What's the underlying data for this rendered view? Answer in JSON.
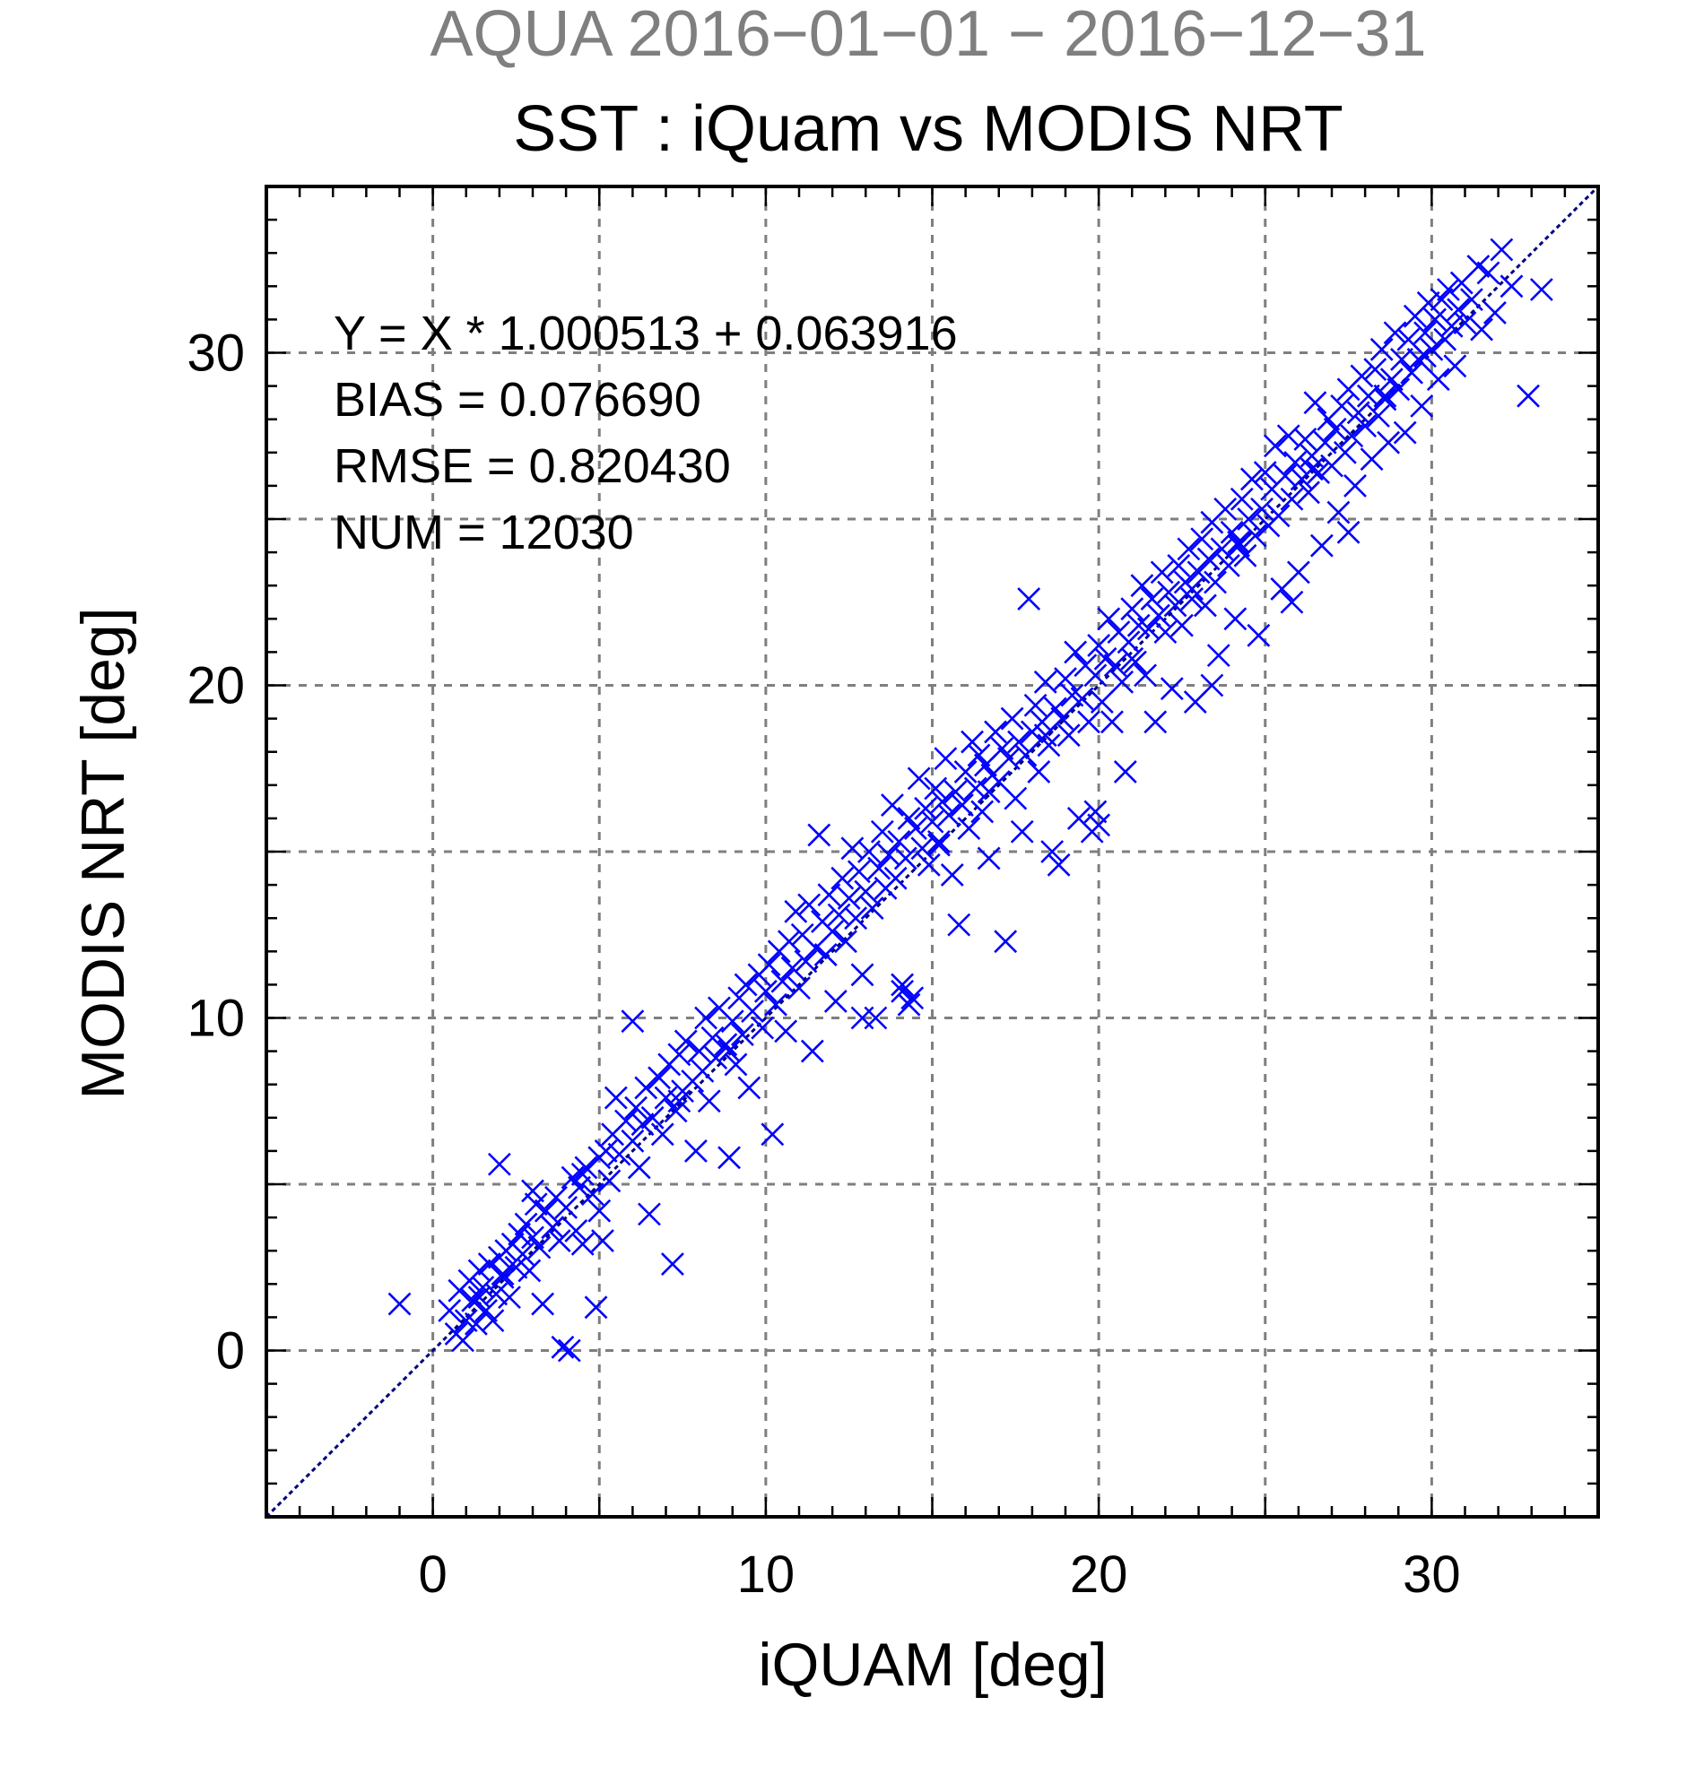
{
  "chart_data": {
    "type": "scatter",
    "suptitle": "AQUA  2016−01−01 − 2016−12−31",
    "title": "SST : iQuam vs MODIS NRT",
    "xlabel": "iQUAM [deg]",
    "ylabel": "MODIS NRT [deg]",
    "xlim": [
      -5,
      35
    ],
    "ylim": [
      -5,
      35
    ],
    "xticks": [
      0,
      10,
      20,
      30
    ],
    "yticks": [
      0,
      10,
      20,
      30
    ],
    "xtick_labels": [
      "0",
      "10",
      "20",
      "30"
    ],
    "ytick_labels": [
      "0",
      "10",
      "20",
      "30"
    ],
    "grid": true,
    "marker": "x",
    "marker_color": "#0000ff",
    "reference_line": {
      "slope": 1,
      "intercept": 0,
      "color": "#000080",
      "style": "dashed"
    },
    "stats": [
      "Y = X * 1.000513 + 0.063916",
      "BIAS = 0.076690",
      "RMSE = 0.820430",
      "NUM = 12030"
    ],
    "points": [
      [
        -1.0,
        1.4
      ],
      [
        0.5,
        1.2
      ],
      [
        0.7,
        0.5
      ],
      [
        0.8,
        1.8
      ],
      [
        0.9,
        0.3
      ],
      [
        1.0,
        0.9
      ],
      [
        1.1,
        2.1
      ],
      [
        1.2,
        1.5
      ],
      [
        1.3,
        0.8
      ],
      [
        1.4,
        2.4
      ],
      [
        1.5,
        1.9
      ],
      [
        1.6,
        1.2
      ],
      [
        1.7,
        2.6
      ],
      [
        1.8,
        0.9
      ],
      [
        1.9,
        1.7
      ],
      [
        2.0,
        2.8
      ],
      [
        2.0,
        5.6
      ],
      [
        2.1,
        2.2
      ],
      [
        2.2,
        3.0
      ],
      [
        2.3,
        1.6
      ],
      [
        2.4,
        3.2
      ],
      [
        2.5,
        2.5
      ],
      [
        2.6,
        3.5
      ],
      [
        2.7,
        2.9
      ],
      [
        2.8,
        3.8
      ],
      [
        2.9,
        2.4
      ],
      [
        3.0,
        3.4
      ],
      [
        3.0,
        4.8
      ],
      [
        3.1,
        4.4
      ],
      [
        3.2,
        3.1
      ],
      [
        3.3,
        1.4
      ],
      [
        3.4,
        4.2
      ],
      [
        3.6,
        3.7
      ],
      [
        3.7,
        4.6
      ],
      [
        3.8,
        3.3
      ],
      [
        3.9,
        0.1
      ],
      [
        4.0,
        4.3
      ],
      [
        4.1,
        0.0
      ],
      [
        4.2,
        5.2
      ],
      [
        4.3,
        3.6
      ],
      [
        4.4,
        4.9
      ],
      [
        4.5,
        3.2
      ],
      [
        4.6,
        5.5
      ],
      [
        4.8,
        4.7
      ],
      [
        4.9,
        1.3
      ],
      [
        5.0,
        5.8
      ],
      [
        5.0,
        4.2
      ],
      [
        5.2,
        6.0
      ],
      [
        5.3,
        5.1
      ],
      [
        5.4,
        6.5
      ],
      [
        5.5,
        7.6
      ],
      [
        5.6,
        5.9
      ],
      [
        5.8,
        6.9
      ],
      [
        6.0,
        6.3
      ],
      [
        6.0,
        9.9
      ],
      [
        6.1,
        7.3
      ],
      [
        6.2,
        5.5
      ],
      [
        6.3,
        6.8
      ],
      [
        6.4,
        7.9
      ],
      [
        6.5,
        4.1
      ],
      [
        6.6,
        7.0
      ],
      [
        6.8,
        8.2
      ],
      [
        6.9,
        6.5
      ],
      [
        7.0,
        7.6
      ],
      [
        7.1,
        8.6
      ],
      [
        7.2,
        2.6
      ],
      [
        7.3,
        7.2
      ],
      [
        7.4,
        8.9
      ],
      [
        7.5,
        7.8
      ],
      [
        7.6,
        9.3
      ],
      [
        7.8,
        8.1
      ],
      [
        7.9,
        6.0
      ],
      [
        8.0,
        9.0
      ],
      [
        8.1,
        8.4
      ],
      [
        8.2,
        10.0
      ],
      [
        8.3,
        7.5
      ],
      [
        8.4,
        9.4
      ],
      [
        8.5,
        8.8
      ],
      [
        8.6,
        10.3
      ],
      [
        8.8,
        9.2
      ],
      [
        8.9,
        5.8
      ],
      [
        9.0,
        9.9
      ],
      [
        9.1,
        8.6
      ],
      [
        9.2,
        10.6
      ],
      [
        9.3,
        9.5
      ],
      [
        9.4,
        11.0
      ],
      [
        9.5,
        7.9
      ],
      [
        9.6,
        10.2
      ],
      [
        9.8,
        11.3
      ],
      [
        9.9,
        9.7
      ],
      [
        10.0,
        10.8
      ],
      [
        10.1,
        11.6
      ],
      [
        10.2,
        6.5
      ],
      [
        10.3,
        10.4
      ],
      [
        10.4,
        12.0
      ],
      [
        10.5,
        11.1
      ],
      [
        10.6,
        9.6
      ],
      [
        10.7,
        12.3
      ],
      [
        10.8,
        11.5
      ],
      [
        10.9,
        13.2
      ],
      [
        11.0,
        10.9
      ],
      [
        11.1,
        12.5
      ],
      [
        11.2,
        11.7
      ],
      [
        11.3,
        13.4
      ],
      [
        11.4,
        9.0
      ],
      [
        11.5,
        12.1
      ],
      [
        11.6,
        15.5
      ],
      [
        11.7,
        12.9
      ],
      [
        11.8,
        11.9
      ],
      [
        11.9,
        13.7
      ],
      [
        12.0,
        12.6
      ],
      [
        12.1,
        10.5
      ],
      [
        12.2,
        13.1
      ],
      [
        12.3,
        14.2
      ],
      [
        12.4,
        12.3
      ],
      [
        12.5,
        13.6
      ],
      [
        12.6,
        15.1
      ],
      [
        12.7,
        13.0
      ],
      [
        12.8,
        14.4
      ],
      [
        12.9,
        11.3
      ],
      [
        13.0,
        13.8
      ],
      [
        13.1,
        15.0
      ],
      [
        13.2,
        13.3
      ],
      [
        13.3,
        10.0
      ],
      [
        13.4,
        14.5
      ],
      [
        13.5,
        15.6
      ],
      [
        13.6,
        13.9
      ],
      [
        13.7,
        14.9
      ],
      [
        13.8,
        16.4
      ],
      [
        13.9,
        14.2
      ],
      [
        14.0,
        15.3
      ],
      [
        14.1,
        11.0
      ],
      [
        14.2,
        14.8
      ],
      [
        14.3,
        16.0
      ],
      [
        14.4,
        10.6
      ],
      [
        14.5,
        15.7
      ],
      [
        14.6,
        17.2
      ],
      [
        14.7,
        15.1
      ],
      [
        14.8,
        16.3
      ],
      [
        14.9,
        14.6
      ],
      [
        15.0,
        15.9
      ],
      [
        15.1,
        16.9
      ],
      [
        15.2,
        15.2
      ],
      [
        15.3,
        16.5
      ],
      [
        15.4,
        17.8
      ],
      [
        15.5,
        16.1
      ],
      [
        15.6,
        14.3
      ],
      [
        15.7,
        16.8
      ],
      [
        15.8,
        12.8
      ],
      [
        15.9,
        16.4
      ],
      [
        16.0,
        17.4
      ],
      [
        16.1,
        15.7
      ],
      [
        16.2,
        18.3
      ],
      [
        16.3,
        16.9
      ],
      [
        16.4,
        17.9
      ],
      [
        16.5,
        16.2
      ],
      [
        16.6,
        17.6
      ],
      [
        16.7,
        14.8
      ],
      [
        16.8,
        17.3
      ],
      [
        16.9,
        18.6
      ],
      [
        17.0,
        17.1
      ],
      [
        17.1,
        18.1
      ],
      [
        17.2,
        12.3
      ],
      [
        17.3,
        17.8
      ],
      [
        17.4,
        19.0
      ],
      [
        17.5,
        16.6
      ],
      [
        17.6,
        18.3
      ],
      [
        17.7,
        15.6
      ],
      [
        17.8,
        17.9
      ],
      [
        17.9,
        22.6
      ],
      [
        18.0,
        18.6
      ],
      [
        18.1,
        19.4
      ],
      [
        18.2,
        17.4
      ],
      [
        18.3,
        18.9
      ],
      [
        18.4,
        20.1
      ],
      [
        18.5,
        18.2
      ],
      [
        18.6,
        15.0
      ],
      [
        18.7,
        19.3
      ],
      [
        18.8,
        14.6
      ],
      [
        18.9,
        19.0
      ],
      [
        19.0,
        20.2
      ],
      [
        19.1,
        18.5
      ],
      [
        19.2,
        19.7
      ],
      [
        19.3,
        21.0
      ],
      [
        19.4,
        16.0
      ],
      [
        19.5,
        19.6
      ],
      [
        19.6,
        20.6
      ],
      [
        19.7,
        18.9
      ],
      [
        19.8,
        15.6
      ],
      [
        19.9,
        20.3
      ],
      [
        20.0,
        21.2
      ],
      [
        20.1,
        19.5
      ],
      [
        20.2,
        20.8
      ],
      [
        20.3,
        22.0
      ],
      [
        20.4,
        18.9
      ],
      [
        20.5,
        20.6
      ],
      [
        20.6,
        21.6
      ],
      [
        20.7,
        20.1
      ],
      [
        20.8,
        17.4
      ],
      [
        20.9,
        21.3
      ],
      [
        21.0,
        22.3
      ],
      [
        21.1,
        20.7
      ],
      [
        21.2,
        21.8
      ],
      [
        21.3,
        23.0
      ],
      [
        21.4,
        20.3
      ],
      [
        21.5,
        21.7
      ],
      [
        21.6,
        22.6
      ],
      [
        21.7,
        18.9
      ],
      [
        21.8,
        22.1
      ],
      [
        21.9,
        23.4
      ],
      [
        22.0,
        21.6
      ],
      [
        22.1,
        22.8
      ],
      [
        22.2,
        19.9
      ],
      [
        22.3,
        22.4
      ],
      [
        22.4,
        23.6
      ],
      [
        22.5,
        21.8
      ],
      [
        22.6,
        23.1
      ],
      [
        22.7,
        24.1
      ],
      [
        22.8,
        22.6
      ],
      [
        22.9,
        19.5
      ],
      [
        23.0,
        23.4
      ],
      [
        23.1,
        24.4
      ],
      [
        23.2,
        22.4
      ],
      [
        23.3,
        23.8
      ],
      [
        23.4,
        24.9
      ],
      [
        23.5,
        23.1
      ],
      [
        23.6,
        20.9
      ],
      [
        23.7,
        24.1
      ],
      [
        23.8,
        25.3
      ],
      [
        23.9,
        23.6
      ],
      [
        24.0,
        24.6
      ],
      [
        24.1,
        22.0
      ],
      [
        24.2,
        24.2
      ],
      [
        24.3,
        25.6
      ],
      [
        24.4,
        23.9
      ],
      [
        24.5,
        25.0
      ],
      [
        24.6,
        26.2
      ],
      [
        24.7,
        24.5
      ],
      [
        24.8,
        21.5
      ],
      [
        24.9,
        25.3
      ],
      [
        25.0,
        26.4
      ],
      [
        25.1,
        24.8
      ],
      [
        25.2,
        25.9
      ],
      [
        25.3,
        27.2
      ],
      [
        25.4,
        25.1
      ],
      [
        25.5,
        22.9
      ],
      [
        25.6,
        26.3
      ],
      [
        25.7,
        27.5
      ],
      [
        25.8,
        25.6
      ],
      [
        25.9,
        26.7
      ],
      [
        26.0,
        23.4
      ],
      [
        26.1,
        26.2
      ],
      [
        26.2,
        27.4
      ],
      [
        26.3,
        25.8
      ],
      [
        26.4,
        26.9
      ],
      [
        26.5,
        28.5
      ],
      [
        26.6,
        26.4
      ],
      [
        26.7,
        24.2
      ],
      [
        26.8,
        27.3
      ],
      [
        26.9,
        28.0
      ],
      [
        27.0,
        26.6
      ],
      [
        27.1,
        27.7
      ],
      [
        27.2,
        25.2
      ],
      [
        27.3,
        28.4
      ],
      [
        27.4,
        27.0
      ],
      [
        27.5,
        28.9
      ],
      [
        27.6,
        27.5
      ],
      [
        27.7,
        26.0
      ],
      [
        27.8,
        28.2
      ],
      [
        27.9,
        29.3
      ],
      [
        28.0,
        27.8
      ],
      [
        28.1,
        28.7
      ],
      [
        28.2,
        26.8
      ],
      [
        28.3,
        29.5
      ],
      [
        28.4,
        28.1
      ],
      [
        28.5,
        30.1
      ],
      [
        28.6,
        28.6
      ],
      [
        28.7,
        27.3
      ],
      [
        28.8,
        29.2
      ],
      [
        28.9,
        30.6
      ],
      [
        29.0,
        28.9
      ],
      [
        29.1,
        29.8
      ],
      [
        29.2,
        27.6
      ],
      [
        29.3,
        30.4
      ],
      [
        29.4,
        29.4
      ],
      [
        29.5,
        31.1
      ],
      [
        29.6,
        29.8
      ],
      [
        29.7,
        28.4
      ],
      [
        29.8,
        30.6
      ],
      [
        29.9,
        31.5
      ],
      [
        30.0,
        30.1
      ],
      [
        30.1,
        31.0
      ],
      [
        30.2,
        29.2
      ],
      [
        30.3,
        31.6
      ],
      [
        30.4,
        30.4
      ],
      [
        30.5,
        31.9
      ],
      [
        30.6,
        30.8
      ],
      [
        30.7,
        29.6
      ],
      [
        30.8,
        31.3
      ],
      [
        30.9,
        32.1
      ],
      [
        31.0,
        30.9
      ],
      [
        31.2,
        31.6
      ],
      [
        31.4,
        32.6
      ],
      [
        31.5,
        30.7
      ],
      [
        31.7,
        32.4
      ],
      [
        31.9,
        31.2
      ],
      [
        32.1,
        33.1
      ],
      [
        32.4,
        32.0
      ],
      [
        32.9,
        28.7
      ],
      [
        33.3,
        31.9
      ],
      [
        20.0,
        15.8
      ],
      [
        19.9,
        16.2
      ],
      [
        14.3,
        10.4
      ],
      [
        14.1,
        10.8
      ],
      [
        5.1,
        3.3
      ],
      [
        4.5,
        5.3
      ],
      [
        12.9,
        10.0
      ],
      [
        25.8,
        22.5
      ],
      [
        23.4,
        20.0
      ],
      [
        27.5,
        24.6
      ],
      [
        21.0,
        20.8
      ],
      [
        22.8,
        22.9
      ],
      [
        24.2,
        24.3
      ],
      [
        26.4,
        26.5
      ],
      [
        28.6,
        28.7
      ],
      [
        29.8,
        29.9
      ],
      [
        18.4,
        18.5
      ],
      [
        16.7,
        16.8
      ],
      [
        15.2,
        15.3
      ],
      [
        11.8,
        11.9
      ],
      [
        8.9,
        9.0
      ],
      [
        7.4,
        7.5
      ],
      [
        3.6,
        3.7
      ],
      [
        2.1,
        2.3
      ],
      [
        1.4,
        1.6
      ]
    ]
  }
}
